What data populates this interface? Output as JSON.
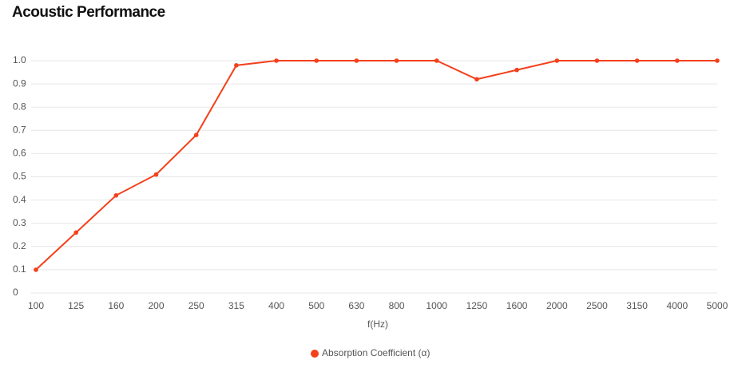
{
  "chart_data": {
    "type": "line",
    "title": "Acoustic Performance",
    "x_label": "f(Hz)",
    "categories": [
      "100",
      "125",
      "160",
      "200",
      "250",
      "315",
      "400",
      "500",
      "630",
      "800",
      "1000",
      "1250",
      "1600",
      "2000",
      "2500",
      "3150",
      "4000",
      "5000"
    ],
    "series": [
      {
        "name": "Absorption Coefficient (α)",
        "color": "#f4401b",
        "values": [
          0.1,
          0.26,
          0.42,
          0.51,
          0.68,
          0.98,
          1,
          1,
          1,
          1,
          1,
          0.92,
          0.96,
          1,
          1,
          1,
          1,
          1
        ]
      }
    ],
    "ylim": [
      0,
      1
    ],
    "yticks": [
      0,
      0.1,
      0.2,
      0.3,
      0.4,
      0.5,
      0.6,
      0.7,
      0.8,
      0.9,
      {
        "value": 1,
        "label": "1.0"
      }
    ],
    "grid": true,
    "legend": "bottom"
  }
}
